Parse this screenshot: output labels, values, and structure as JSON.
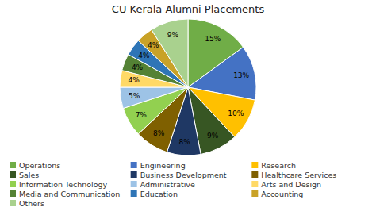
{
  "chart_data": {
    "type": "pie",
    "title": "CU Kerala Alumni Placements",
    "categories": [
      "Operations",
      "Engineering",
      "Research",
      "Sales",
      "Business Development",
      "Healthcare Services",
      "Information Technology",
      "Administrative",
      "Arts and Design",
      "Media and Communication",
      "Education",
      "Accounting",
      "Others"
    ],
    "values": [
      15,
      13,
      10,
      9,
      8,
      8,
      7,
      5,
      4,
      4,
      4,
      4,
      9
    ],
    "value_labels": [
      "15%",
      "13%",
      "10%",
      "9%",
      "8%",
      "8%",
      "7%",
      "5%",
      "4%",
      "4%",
      "4%",
      "4%",
      "9%"
    ],
    "colors": [
      "#70AD47",
      "#4472C4",
      "#FFC000",
      "#375623",
      "#1F3864",
      "#7F6000",
      "#92D050",
      "#9DC3E6",
      "#FFD966",
      "#548235",
      "#2E75B6",
      "#C9A227",
      "#A9D18E"
    ],
    "data_labels": true,
    "legend": "bottom"
  }
}
